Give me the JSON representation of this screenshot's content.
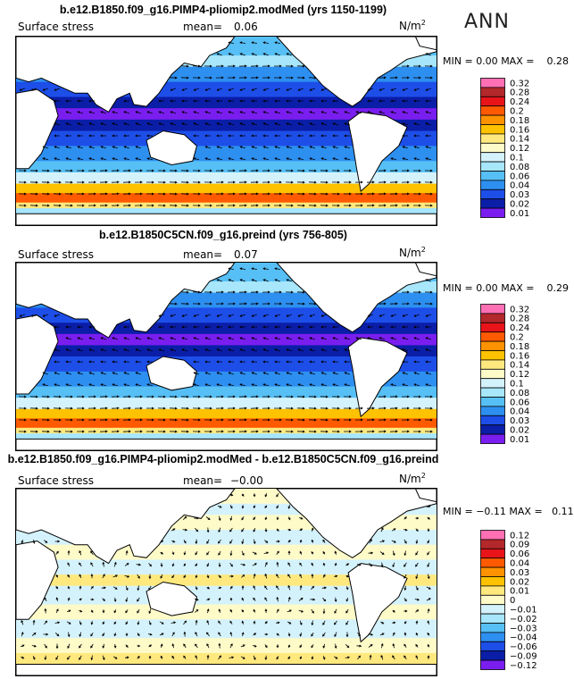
{
  "season": "ANN",
  "panels": [
    {
      "title": "b.e12.B1850.f09_g16.PIMP4-pliomip2.modMed (yrs 1150-1199)",
      "variable": "Surface stress",
      "mean_label": "mean=",
      "mean_value": "0.06",
      "units": "N/m",
      "units_exp": "2",
      "min_label": "MIN =",
      "min_value": "0.00",
      "max_label": "MAX =",
      "max_value": "0.28",
      "levels": [
        "0.32",
        "0.28",
        "0.24",
        "0.2",
        "0.18",
        "0.16",
        "0.14",
        "0.12",
        "0.1",
        "0.08",
        "0.06",
        "0.04",
        "0.03",
        "0.02",
        "0.01"
      ],
      "colors": [
        "#ff6fb4",
        "#b3282a",
        "#e8141a",
        "#ff5a00",
        "#ff9200",
        "#ffc200",
        "#ffe97f",
        "#fffbc8",
        "#d4f2fc",
        "#a7e6fb",
        "#56bff5",
        "#2d8ff0",
        "#1d4ee8",
        "#0b1ea8",
        "#7a1ef0"
      ]
    },
    {
      "title": "b.e12.B1850C5CN.f09_g16.preind (yrs 756-805)",
      "variable": "Surface stress",
      "mean_label": "mean=",
      "mean_value": "0.07",
      "units": "N/m",
      "units_exp": "2",
      "min_label": "MIN =",
      "min_value": "0.00",
      "max_label": "MAX =",
      "max_value": "0.29",
      "levels": [
        "0.32",
        "0.28",
        "0.24",
        "0.2",
        "0.18",
        "0.16",
        "0.14",
        "0.12",
        "0.1",
        "0.08",
        "0.06",
        "0.04",
        "0.03",
        "0.02",
        "0.01"
      ],
      "colors": [
        "#ff6fb4",
        "#b3282a",
        "#e8141a",
        "#ff5a00",
        "#ff9200",
        "#ffc200",
        "#ffe97f",
        "#fffbc8",
        "#d4f2fc",
        "#a7e6fb",
        "#56bff5",
        "#2d8ff0",
        "#1d4ee8",
        "#0b1ea8",
        "#7a1ef0"
      ]
    },
    {
      "title": "b.e12.B1850.f09_g16.PIMP4-pliomip2.modMed - b.e12.B1850C5CN.f09_g16.preind",
      "variable": "Surface stress",
      "mean_label": "mean=",
      "mean_value": "−0.00",
      "units": "N/m",
      "units_exp": "2",
      "min_label": "MIN =",
      "min_value": "−0.11",
      "max_label": "MAX =",
      "max_value": "0.11",
      "levels": [
        "0.12",
        "0.09",
        "0.06",
        "0.04",
        "0.03",
        "0.02",
        "0.01",
        "0",
        "−0.01",
        "−0.02",
        "−0.03",
        "−0.04",
        "−0.06",
        "−0.09",
        "−0.12"
      ],
      "colors": [
        "#ff6fb4",
        "#b3282a",
        "#e8141a",
        "#ff5a00",
        "#ff9200",
        "#ffc200",
        "#ffe97f",
        "#fffbc8",
        "#d4f2fc",
        "#a7e6fb",
        "#56bff5",
        "#2d8ff0",
        "#1d4ee8",
        "#0b1ea8",
        "#7a1ef0"
      ]
    }
  ],
  "chart_data": [
    {
      "type": "heatmap",
      "title": "b.e12.B1850.f09_g16.PIMP4-pliomip2.modMed (yrs 1150-1199)",
      "field": "Surface stress (annual mean wind stress vectors over ocean)",
      "units": "N/m2",
      "mean": 0.06,
      "min": 0.0,
      "max": 0.28,
      "contour_levels": [
        0.01,
        0.02,
        0.03,
        0.04,
        0.06,
        0.08,
        0.1,
        0.12,
        0.14,
        0.16,
        0.18,
        0.2,
        0.24,
        0.28,
        0.32
      ]
    },
    {
      "type": "heatmap",
      "title": "b.e12.B1850C5CN.f09_g16.preind (yrs 756-805)",
      "field": "Surface stress (annual mean wind stress vectors over ocean)",
      "units": "N/m2",
      "mean": 0.07,
      "min": 0.0,
      "max": 0.29,
      "contour_levels": [
        0.01,
        0.02,
        0.03,
        0.04,
        0.06,
        0.08,
        0.1,
        0.12,
        0.14,
        0.16,
        0.18,
        0.2,
        0.24,
        0.28,
        0.32
      ]
    },
    {
      "type": "heatmap",
      "title": "b.e12.B1850.f09_g16.PIMP4-pliomip2.modMed - b.e12.B1850C5CN.f09_g16.preind",
      "field": "Surface stress difference",
      "units": "N/m2",
      "mean": -0.0,
      "min": -0.11,
      "max": 0.11,
      "contour_levels": [
        -0.12,
        -0.09,
        -0.06,
        -0.04,
        -0.03,
        -0.02,
        -0.01,
        0,
        0.01,
        0.02,
        0.03,
        0.04,
        0.06,
        0.09,
        0.12
      ]
    }
  ]
}
